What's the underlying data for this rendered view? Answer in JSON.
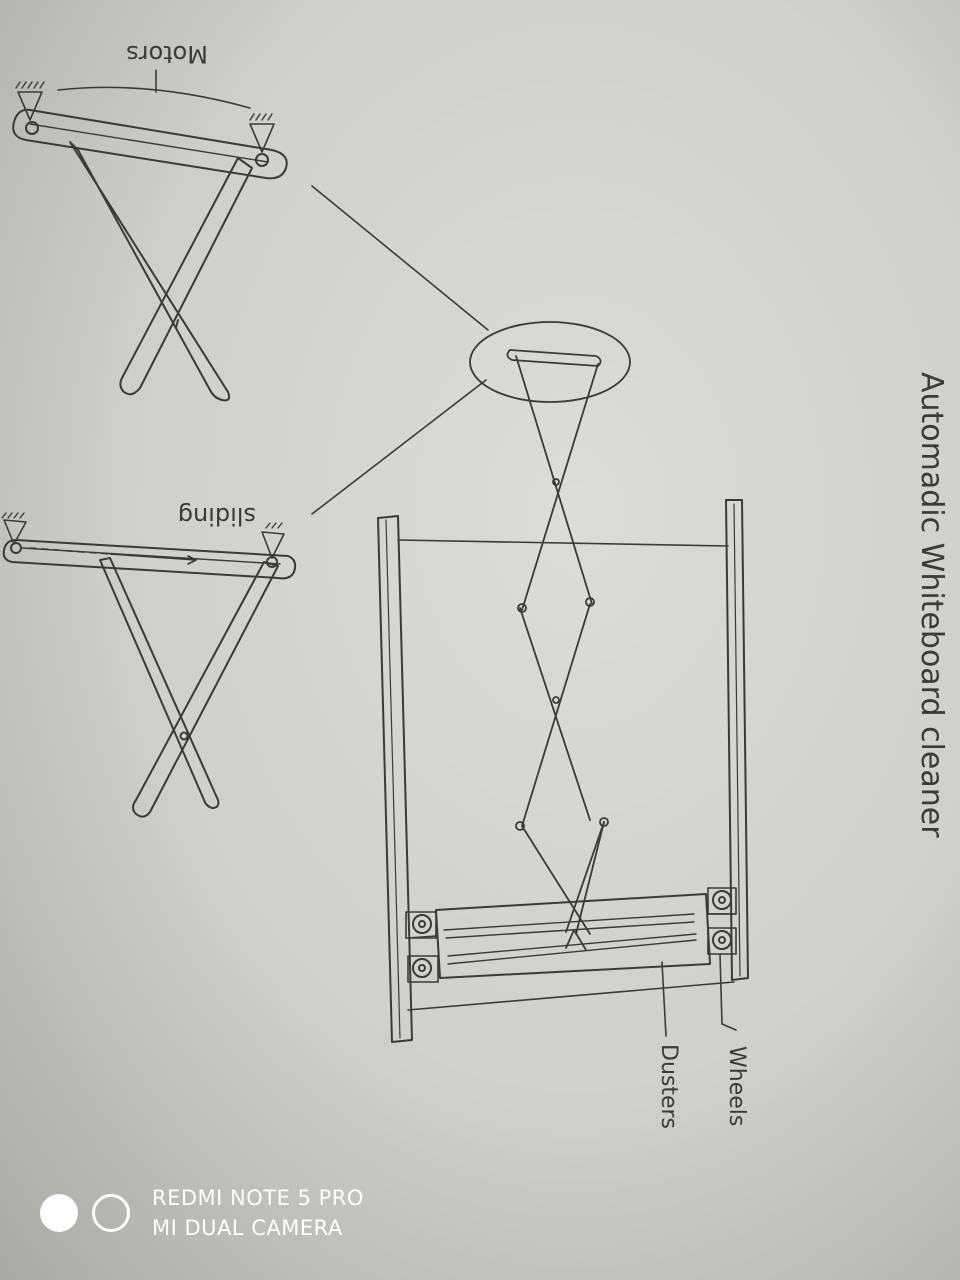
{
  "diagram": {
    "title": "Automadic Whiteboard cleaner",
    "labels": {
      "motors": "Motors",
      "sliding": "sliding",
      "wheels": "Wheels",
      "dusters": "Dusters"
    }
  },
  "watermark": {
    "line1": "REDMI NOTE 5 PRO",
    "line2": "MI DUAL CAMERA"
  },
  "colors": {
    "paper": "#d6d6d3",
    "pencil": "#3a3a3a",
    "watermark": "#ffffff"
  }
}
